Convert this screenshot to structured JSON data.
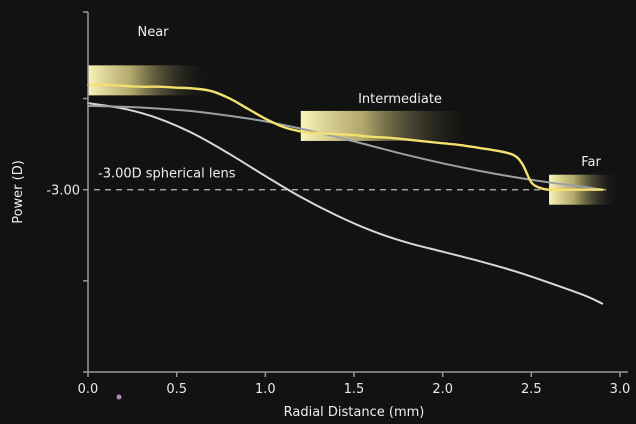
{
  "chart_data": {
    "type": "line",
    "title": "",
    "xlabel": "Radial Distance (mm)",
    "ylabel": "Power (D)",
    "xlim": [
      0,
      3.0
    ],
    "x_ticks": [
      "0.0",
      "0.5",
      "1.0",
      "1.5",
      "2.0",
      "2.5",
      "3.0"
    ],
    "y_ticks": [
      {
        "value": -3.0,
        "label": "-3.00"
      }
    ],
    "ylim": [
      -5.0,
      -1.05
    ],
    "grid": false,
    "legend": "none",
    "reference_line": {
      "y": -3.0,
      "label": "-3.00D spherical lens",
      "style": "dashed"
    },
    "zones": [
      {
        "label": "Near",
        "x_start": 0.0,
        "x_end": 0.7,
        "y_center": -1.8
      },
      {
        "label": "Intermediate",
        "x_start": 1.2,
        "x_end": 2.2,
        "y_center": -2.3
      },
      {
        "label": "Far",
        "x_start": 2.6,
        "x_end": 3.0,
        "y_center": -3.0
      }
    ],
    "series": [
      {
        "color": "#f3e06e",
        "x": [
          0.0,
          0.1,
          0.2,
          0.3,
          0.4,
          0.5,
          0.6,
          0.7,
          0.8,
          0.9,
          1.0,
          1.1,
          1.2,
          1.3,
          1.4,
          1.5,
          1.6,
          1.7,
          1.8,
          1.9,
          2.0,
          2.1,
          2.2,
          2.3,
          2.4,
          2.45,
          2.5,
          2.55,
          2.6,
          2.7,
          2.8,
          2.9
        ],
        "y": [
          -1.85,
          -1.85,
          -1.86,
          -1.87,
          -1.87,
          -1.88,
          -1.89,
          -1.92,
          -2.0,
          -2.11,
          -2.22,
          -2.31,
          -2.36,
          -2.38,
          -2.39,
          -2.4,
          -2.42,
          -2.43,
          -2.45,
          -2.47,
          -2.49,
          -2.51,
          -2.54,
          -2.57,
          -2.62,
          -2.72,
          -2.92,
          -2.98,
          -3.0,
          -3.0,
          -3.0,
          -3.0
        ]
      },
      {
        "color": "#9aa0a6",
        "x": [
          0.0,
          0.2,
          0.4,
          0.6,
          0.8,
          1.0,
          1.2,
          1.4,
          1.6,
          1.8,
          2.0,
          2.2,
          2.4,
          2.6,
          2.8,
          2.9
        ],
        "y": [
          -2.08,
          -2.09,
          -2.11,
          -2.14,
          -2.19,
          -2.25,
          -2.33,
          -2.42,
          -2.52,
          -2.62,
          -2.71,
          -2.79,
          -2.86,
          -2.92,
          -2.97,
          -3.0
        ]
      },
      {
        "color": "#d8d8d8",
        "x": [
          0.0,
          0.2,
          0.4,
          0.6,
          0.8,
          1.0,
          1.2,
          1.4,
          1.6,
          1.8,
          2.0,
          2.2,
          2.4,
          2.6,
          2.8,
          2.9
        ],
        "y": [
          -2.05,
          -2.11,
          -2.22,
          -2.39,
          -2.61,
          -2.85,
          -3.08,
          -3.28,
          -3.45,
          -3.58,
          -3.68,
          -3.78,
          -3.89,
          -4.02,
          -4.16,
          -4.25
        ]
      }
    ]
  }
}
